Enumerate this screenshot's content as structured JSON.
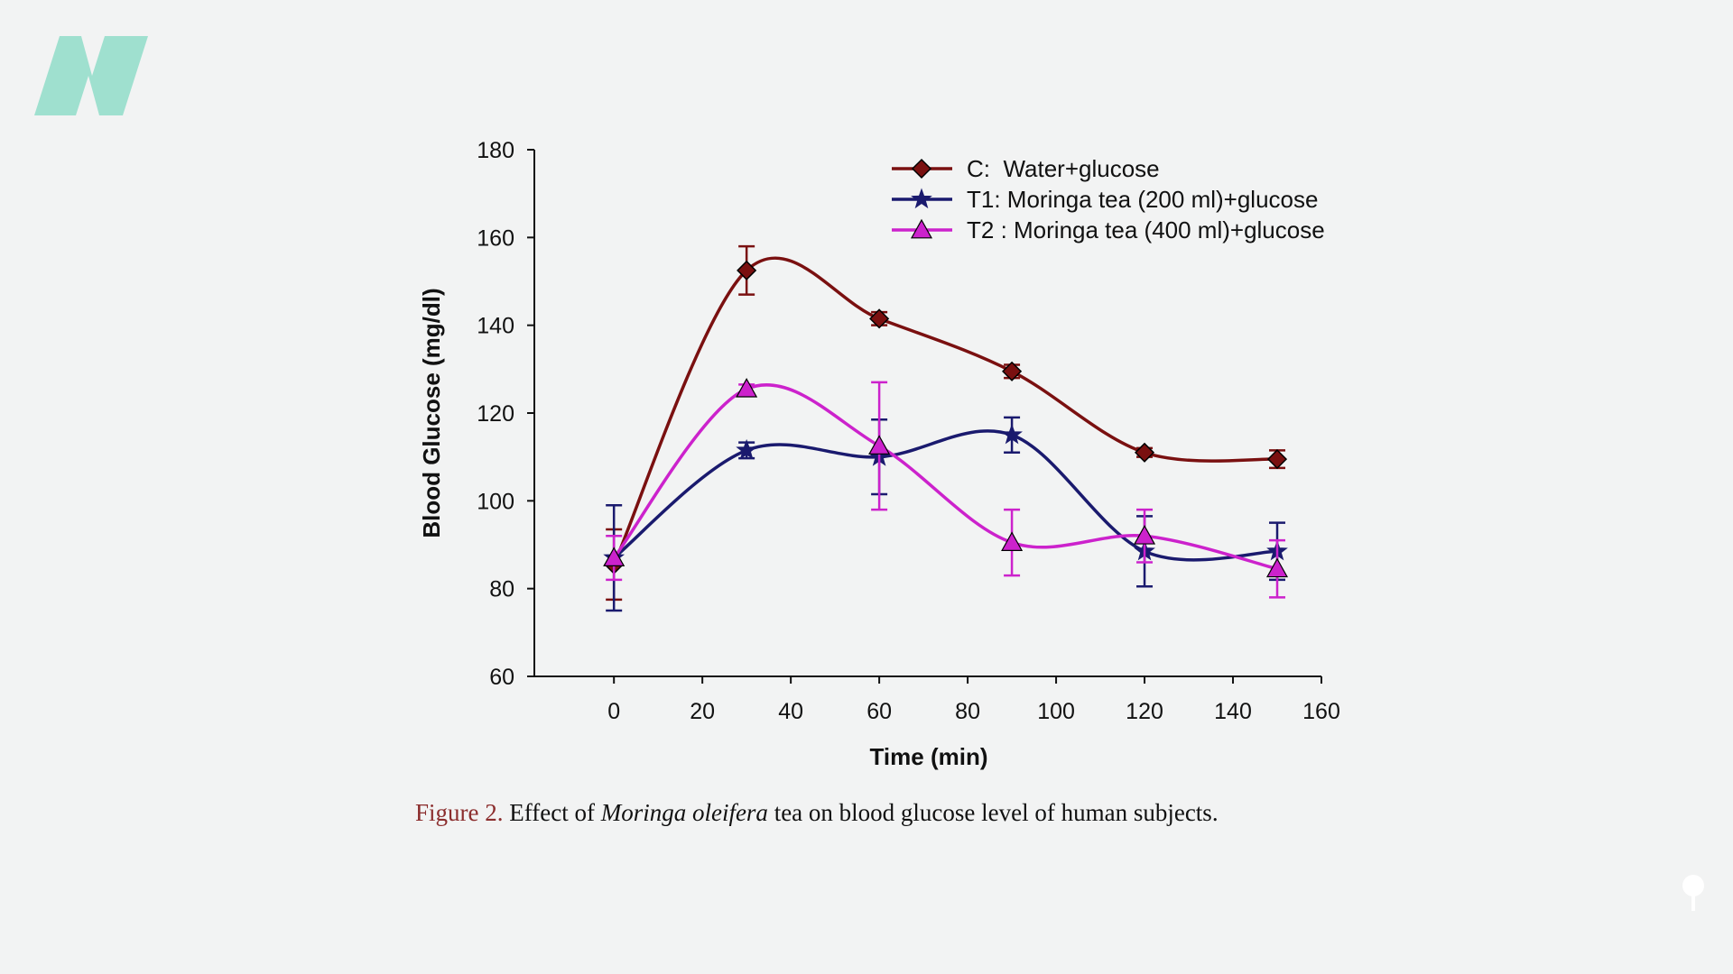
{
  "logo": {
    "icon": "stylized-n-logo-icon",
    "color": "#9fe0cf"
  },
  "caption": {
    "label": "Figure 2.",
    "text_before": "Effect of",
    "species": "Moringa oleifera",
    "text_after": "tea on blood glucose level of human subjects."
  },
  "chart_data": {
    "type": "line",
    "title": "",
    "xlabel": "Time (min)",
    "ylabel": "Blood Glucose (mg/dl)",
    "xlim": [
      -18,
      160
    ],
    "ylim": [
      60,
      180
    ],
    "x_ticks": [
      0,
      20,
      40,
      60,
      80,
      100,
      120,
      140,
      160
    ],
    "y_ticks": [
      60,
      80,
      100,
      120,
      140,
      160,
      180
    ],
    "grid": false,
    "legend_position": "top-right",
    "smooth_lines": true,
    "x": [
      0,
      30,
      60,
      90,
      120,
      150
    ],
    "series": [
      {
        "name": "C:  Water+glucose",
        "color": "#7a1010",
        "marker": "diamond",
        "values": [
          85.5,
          152.5,
          141.5,
          129.5,
          111,
          109.5
        ],
        "errors": [
          8,
          5.5,
          1.5,
          1.5,
          1,
          2
        ]
      },
      {
        "name": "T1: Moringa tea (200 ml)+glucose",
        "color": "#1a1a6e",
        "marker": "star",
        "values": [
          87,
          111.5,
          110,
          115,
          88.5,
          88.5
        ],
        "errors": [
          12,
          1.8,
          8.5,
          4,
          8,
          6.5
        ]
      },
      {
        "name": "T2 : Moringa tea (400 ml)+glucose",
        "color": "#cc22cc",
        "marker": "triangle",
        "values": [
          87,
          125.5,
          112.5,
          90.5,
          92,
          84.5
        ],
        "errors": [
          5,
          1,
          14.5,
          7.5,
          6,
          6.5
        ]
      }
    ]
  },
  "corner_icon": "lollipop-pin-icon"
}
